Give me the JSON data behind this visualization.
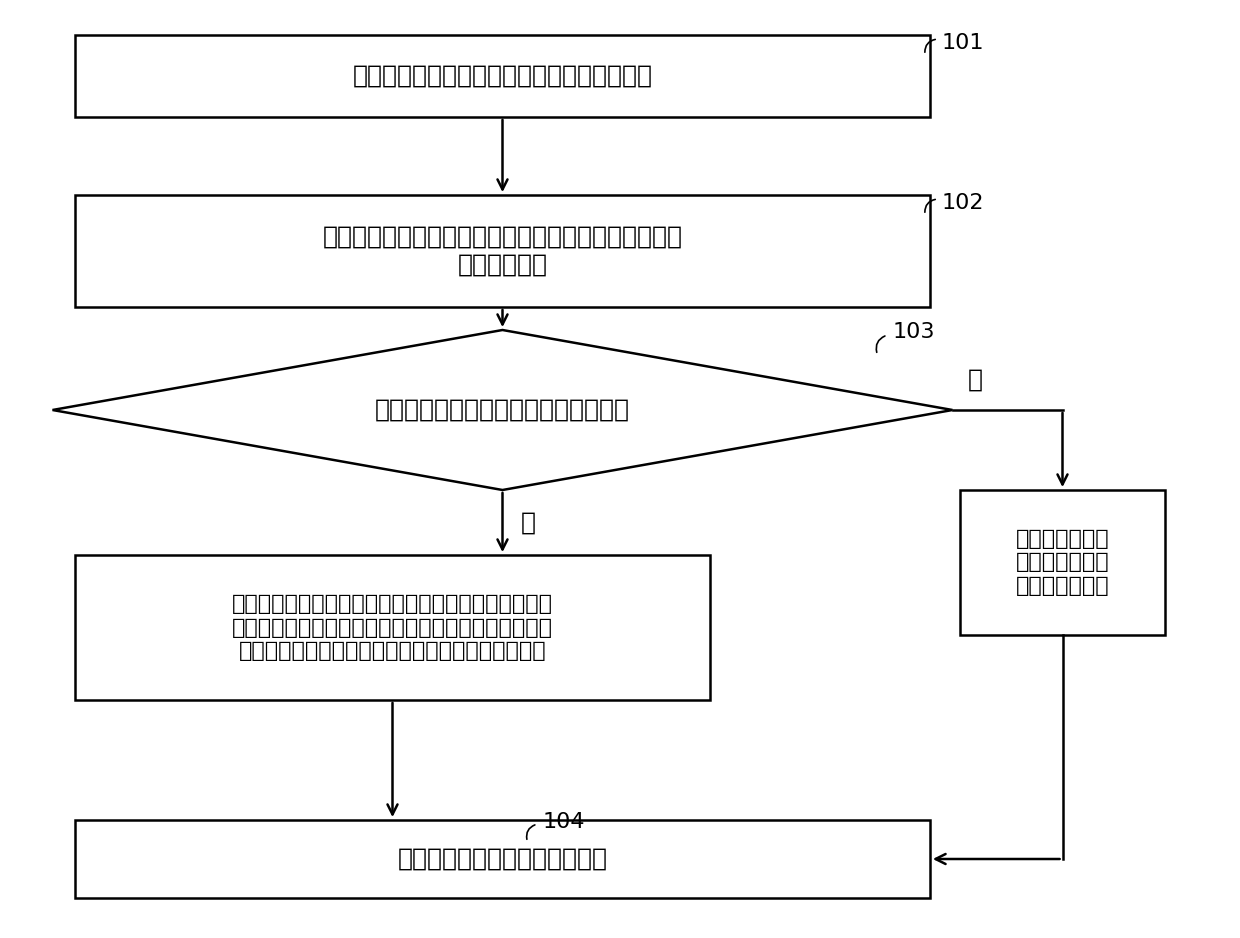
{
  "bg_color": "#ffffff",
  "line_color": "#000000",
  "box_color": "#ffffff",
  "box_border_color": "#000000",
  "text_color": "#000000",
  "font_size": 18,
  "small_font_size": 16,
  "label_font_size": 16,
  "node101_label": "确定所述被控制端对应的电流滞后电压相位角",
  "node102_label": "在接收到外部发来的切换指令时，确定所述被控制端的\n当前开关状态",
  "node103_label": "判断所述当前开关状态是否为关断状态",
  "node_left_label": "根据所述电流滞后电压相位角、所述目标电源过零点、\n所述目标电源过零点时所述交流电源的目标电源频率，\n确定控制时间点，并在确定出达到所述控制时间点时",
  "node_right_label": "在确定出达到所\n述交流电源的目\n标电源过零点时",
  "node104_label": "控制所述被控制端切换开关状态",
  "label_101": "101",
  "label_102": "102",
  "label_103": "103",
  "label_104": "104",
  "yes_label": "是",
  "no_label": "否"
}
